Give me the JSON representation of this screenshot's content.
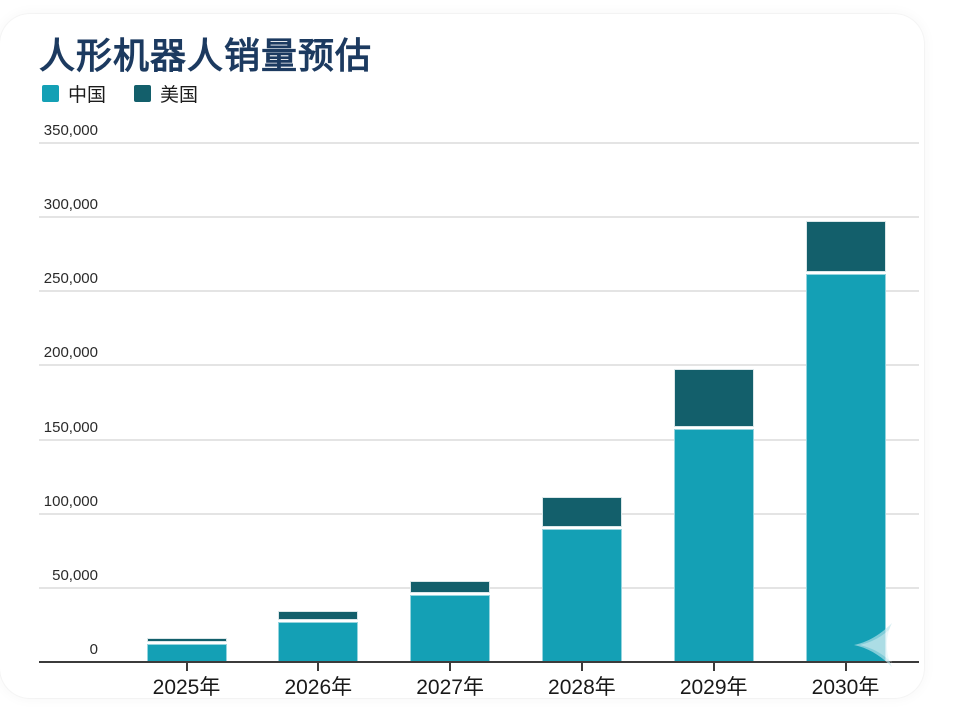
{
  "title": "人形机器人销量预估",
  "legend": {
    "items": [
      {
        "label": "中国",
        "color": "#14a0b5"
      },
      {
        "label": "美国",
        "color": "#135f6b"
      }
    ]
  },
  "chart_data": {
    "type": "bar",
    "stacked": true,
    "title": "人形机器人销量预估",
    "xlabel": "",
    "ylabel": "",
    "categories": [
      "2025年",
      "2026年",
      "2027年",
      "2028年",
      "2029年",
      "2030年"
    ],
    "series": [
      {
        "name": "中国",
        "color": "#14a0b5",
        "values": [
          12000,
          27000,
          45000,
          90000,
          157000,
          262000
        ]
      },
      {
        "name": "美国",
        "color": "#135f6b",
        "values": [
          3000,
          6000,
          8000,
          20000,
          39000,
          34000
        ]
      }
    ],
    "totals": [
      15000,
      33000,
      53000,
      110000,
      196000,
      296000
    ],
    "ylim": [
      0,
      350000
    ],
    "ytick_interval": 50000,
    "ytick_labels": [
      "0",
      "50,000",
      "100,000",
      "150,000",
      "200,000",
      "250,000",
      "300,000",
      "350,000"
    ],
    "grid": true,
    "legend_position": "top-left"
  },
  "colors": {
    "title": "#1c3a60",
    "china": "#14a0b5",
    "usa": "#135f6b",
    "axis": "#3b3b3b",
    "gridline": "#e4e4e4",
    "text": "#1c1c1c",
    "background": "#ffffff"
  }
}
